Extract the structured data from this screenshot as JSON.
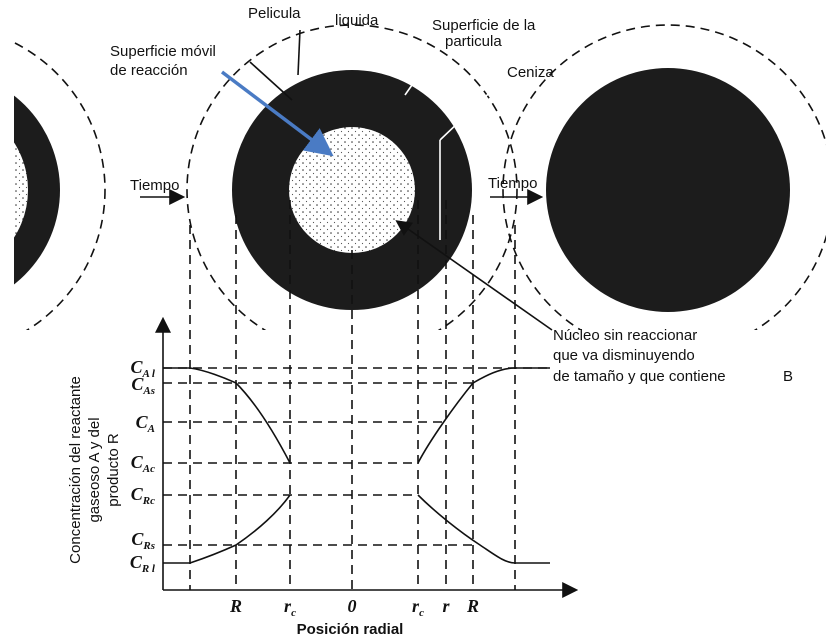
{
  "labels": {
    "film": [
      "Pelicula",
      "liquida"
    ],
    "surface": [
      "Superficie de la",
      "particula"
    ],
    "front": [
      "Superficie móvil",
      "de reacción"
    ],
    "ash": "Ceniza",
    "time_left": "Tiempo",
    "time_right": "Tiempo",
    "core": [
      "Núcleo sin reaccionar",
      "que va disminuyendo",
      "de tamaño y que contiene"
    ],
    "core_b": "B"
  },
  "y_axis": {
    "title": [
      "Concentración del reactante",
      "gaseoso A y del",
      "producto R"
    ],
    "levels": [
      {
        "main": "C",
        "sub": "A l"
      },
      {
        "main": "C",
        "sub": "As"
      },
      {
        "main": "C",
        "sub": "A"
      },
      {
        "main": "C",
        "sub": "Ac"
      },
      {
        "main": "C",
        "sub": "Rc"
      },
      {
        "main": "C",
        "sub": "Rs"
      },
      {
        "main": "C",
        "sub": "R l"
      }
    ]
  },
  "x_axis": {
    "title": "Posición radial",
    "ticks": [
      {
        "main": "R"
      },
      {
        "main": "r",
        "sub": "c"
      },
      {
        "main": "0"
      },
      {
        "main": "r",
        "sub": "c"
      },
      {
        "main": "r"
      },
      {
        "main": "R"
      }
    ]
  }
}
